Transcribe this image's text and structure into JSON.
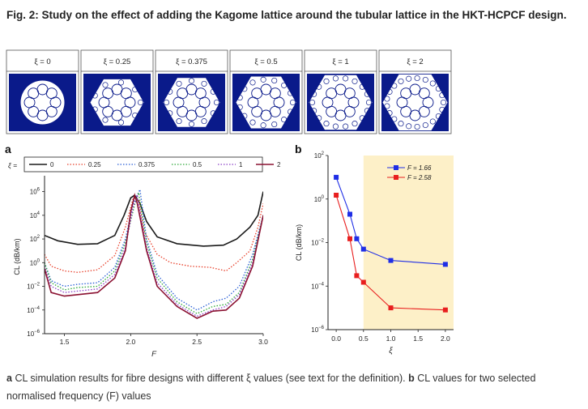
{
  "figure": {
    "title": "Fig. 2: Study on the effect of adding the Kagome lattice around the tubular lattice in the HKT-HCPCF design.",
    "caption": {
      "a_label": "a",
      "a_text": "CL simulation results for fibre designs with different ξ values (see text for the definition).",
      "b_label": "b",
      "b_text": "CL values for two selected normalised frequency (F) values"
    }
  },
  "colors": {
    "substrate": "#0a1a8a",
    "highlight": "#fdf0c8",
    "xi_0": "#1a1a1a",
    "xi_0_25": "#e8412c",
    "xi_0_375": "#2a5fd6",
    "xi_0_5": "#2ea83a",
    "xi_1": "#8a3fc6",
    "xi_2": "#8a1030",
    "F_1_66": "#1f2ee6",
    "F_2_58": "#e81e1e"
  },
  "panels": {
    "xi_labels": [
      "ξ = 0",
      "ξ = 0.25",
      "ξ = 0.375",
      "ξ = 0.5",
      "ξ = 1",
      "ξ = 2"
    ],
    "tube_icon": "fibre-cross-section-icon"
  },
  "chart_data": [
    {
      "panel": "a",
      "type": "line",
      "xlabel": "F",
      "ylabel": "CL (dB/km)",
      "yscale": "log",
      "xlim": [
        1.35,
        3.0
      ],
      "ylim": [
        1e-06,
        10000000.0
      ],
      "xticks": [
        "1.5",
        "2.0",
        "2.5",
        "3.0"
      ],
      "yticks": [
        {
          "base": "10",
          "exp": "6"
        },
        {
          "base": "10",
          "exp": "4"
        },
        {
          "base": "10",
          "exp": "2"
        },
        {
          "base": "10",
          "exp": "0"
        },
        {
          "base": "10",
          "exp": "−2"
        },
        {
          "base": "10",
          "exp": "−4"
        },
        {
          "base": "10",
          "exp": "−6"
        }
      ],
      "legend": {
        "prefix": "ξ =",
        "entries": [
          "0",
          "0.25",
          "0.375",
          "0.5",
          "1",
          "2"
        ],
        "placement": "top"
      },
      "series": [
        {
          "name": "0",
          "style": "solid",
          "points": [
            [
              1.35,
              200
            ],
            [
              1.45,
              70
            ],
            [
              1.6,
              35
            ],
            [
              1.75,
              40
            ],
            [
              1.88,
              200
            ],
            [
              1.95,
              10000
            ],
            [
              2.0,
              300000
            ],
            [
              2.03,
              500000
            ],
            [
              2.07,
              100000
            ],
            [
              2.12,
              3000
            ],
            [
              2.2,
              150
            ],
            [
              2.35,
              40
            ],
            [
              2.55,
              25
            ],
            [
              2.7,
              30
            ],
            [
              2.8,
              100
            ],
            [
              2.9,
              1000
            ],
            [
              2.96,
              10000
            ],
            [
              3.0,
              1000000
            ]
          ]
        },
        {
          "name": "0.25",
          "style": "dotted",
          "points": [
            [
              1.35,
              5
            ],
            [
              1.4,
              0.5
            ],
            [
              1.5,
              0.2
            ],
            [
              1.6,
              0.15
            ],
            [
              1.75,
              0.25
            ],
            [
              1.88,
              4
            ],
            [
              1.96,
              1000
            ],
            [
              2.02,
              300000
            ],
            [
              2.06,
              200000
            ],
            [
              2.1,
              500
            ],
            [
              2.2,
              5
            ],
            [
              2.3,
              1
            ],
            [
              2.45,
              0.5
            ],
            [
              2.6,
              0.4
            ],
            [
              2.72,
              0.2
            ],
            [
              2.8,
              1
            ],
            [
              2.9,
              10
            ],
            [
              2.96,
              1000
            ],
            [
              3.0,
              100000
            ]
          ]
        },
        {
          "name": "0.375",
          "style": "dotted",
          "points": [
            [
              1.35,
              1
            ],
            [
              1.4,
              0.03
            ],
            [
              1.5,
              0.01
            ],
            [
              1.6,
              0.015
            ],
            [
              1.75,
              0.02
            ],
            [
              1.88,
              0.4
            ],
            [
              1.96,
              100
            ],
            [
              2.02,
              100000
            ],
            [
              2.07,
              1500000
            ],
            [
              2.12,
              100
            ],
            [
              2.2,
              0.1
            ],
            [
              2.35,
              0.001
            ],
            [
              2.5,
              0.0001
            ],
            [
              2.62,
              0.0005
            ],
            [
              2.72,
              0.001
            ],
            [
              2.82,
              0.01
            ],
            [
              2.92,
              5
            ],
            [
              3.0,
              10000
            ]
          ]
        },
        {
          "name": "0.5",
          "style": "dotted",
          "points": [
            [
              1.35,
              1
            ],
            [
              1.4,
              0.02
            ],
            [
              1.5,
              0.005
            ],
            [
              1.6,
              0.008
            ],
            [
              1.75,
              0.01
            ],
            [
              1.88,
              0.2
            ],
            [
              1.96,
              50
            ],
            [
              2.03,
              80000
            ],
            [
              2.06,
              800000
            ],
            [
              2.12,
              50
            ],
            [
              2.2,
              0.05
            ],
            [
              2.35,
              0.0005
            ],
            [
              2.5,
              5e-05
            ],
            [
              2.62,
              0.0002
            ],
            [
              2.72,
              0.0003
            ],
            [
              2.82,
              0.003
            ],
            [
              2.92,
              2
            ],
            [
              3.0,
              10000
            ]
          ]
        },
        {
          "name": "1",
          "style": "dotted",
          "points": [
            [
              1.35,
              0.5
            ],
            [
              1.4,
              0.01
            ],
            [
              1.5,
              0.003
            ],
            [
              1.6,
              0.004
            ],
            [
              1.75,
              0.006
            ],
            [
              1.88,
              0.1
            ],
            [
              1.96,
              20
            ],
            [
              2.02,
              60000
            ],
            [
              2.05,
              400000
            ],
            [
              2.12,
              20
            ],
            [
              2.2,
              0.02
            ],
            [
              2.35,
              0.0003
            ],
            [
              2.5,
              3e-05
            ],
            [
              2.62,
              0.0001
            ],
            [
              2.72,
              0.0002
            ],
            [
              2.82,
              0.002
            ],
            [
              2.92,
              1
            ],
            [
              3.0,
              10000
            ]
          ]
        },
        {
          "name": "2",
          "style": "solid",
          "points": [
            [
              1.35,
              0.3
            ],
            [
              1.4,
              0.003
            ],
            [
              1.5,
              0.0015
            ],
            [
              1.6,
              0.002
            ],
            [
              1.75,
              0.003
            ],
            [
              1.88,
              0.05
            ],
            [
              1.96,
              10
            ],
            [
              2.0,
              20000
            ],
            [
              2.03,
              500000
            ],
            [
              2.05,
              100000
            ],
            [
              2.12,
              10
            ],
            [
              2.2,
              0.01
            ],
            [
              2.35,
              0.0002
            ],
            [
              2.5,
              2e-05
            ],
            [
              2.62,
              8e-05
            ],
            [
              2.72,
              0.0001
            ],
            [
              2.82,
              0.001
            ],
            [
              2.92,
              0.5
            ],
            [
              3.0,
              10000
            ]
          ]
        }
      ]
    },
    {
      "panel": "b",
      "type": "line",
      "xlabel": "ξ",
      "ylabel": "CL (dB/km)",
      "yscale": "log",
      "xlim": [
        -0.15,
        2.15
      ],
      "ylim": [
        1e-06,
        100.0
      ],
      "highlight_x": [
        0.5,
        2.15
      ],
      "xticks": [
        "0.0",
        "0.5",
        "1.0",
        "1.5",
        "2.0"
      ],
      "yticks": [
        {
          "base": "10",
          "exp": "2"
        },
        {
          "base": "10",
          "exp": "0"
        },
        {
          "base": "10",
          "exp": "−2"
        },
        {
          "base": "10",
          "exp": "−4"
        },
        {
          "base": "10",
          "exp": "−6"
        }
      ],
      "legend": {
        "placement": "top-right"
      },
      "series": [
        {
          "name": "F = 1.66",
          "x": [
            0,
            0.25,
            0.375,
            0.5,
            1,
            2
          ],
          "y": [
            10,
            0.2,
            0.015,
            0.005,
            0.0015,
            0.001
          ]
        },
        {
          "name": "F = 2.58",
          "x": [
            0,
            0.25,
            0.375,
            0.5,
            1,
            2
          ],
          "y": [
            1.5,
            0.015,
            0.0003,
            0.00015,
            1e-05,
            8e-06
          ]
        }
      ]
    }
  ]
}
